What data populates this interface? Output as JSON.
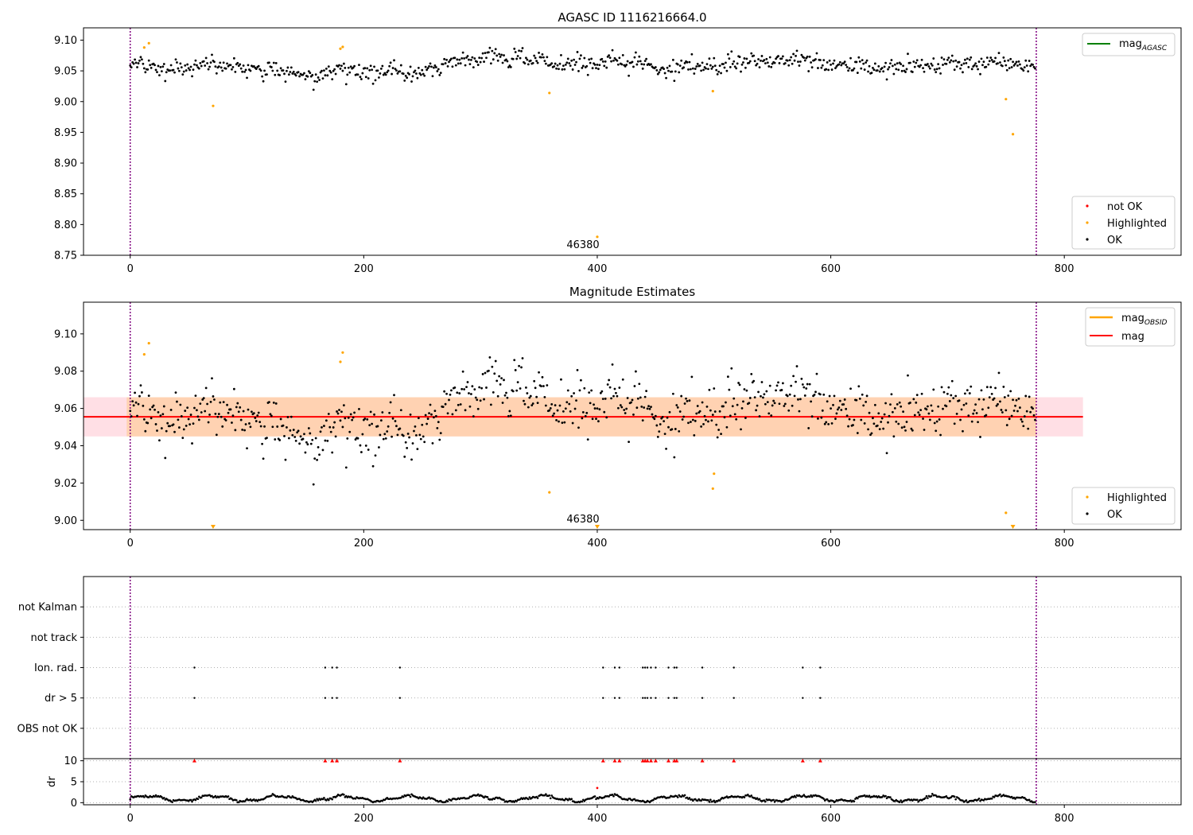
{
  "chart_data": [
    {
      "type": "scatter",
      "title": "AGASC ID 1116216664.0",
      "xlim": [
        -40,
        900
      ],
      "ylim": [
        8.75,
        9.12
      ],
      "xticks": [
        0,
        200,
        400,
        600,
        800
      ],
      "yticks": [
        8.75,
        8.8,
        8.85,
        8.9,
        8.95,
        9.0,
        9.05,
        9.1
      ],
      "ytick_labels": [
        "8.75",
        "8.80",
        "8.85",
        "8.90",
        "8.95",
        "9.00",
        "9.05",
        "9.10"
      ],
      "xtick_labels": [
        "0",
        "200",
        "400",
        "600",
        "800"
      ],
      "vlines": [
        0,
        776
      ],
      "annotation": {
        "text": "46380",
        "x": 389,
        "y": 8.755
      },
      "legend_top": {
        "placement": "top-right",
        "entries": [
          {
            "label": "mag",
            "subscript": "AGASC",
            "color": "#008000"
          }
        ]
      },
      "legend_bottom": {
        "placement": "bottom-right",
        "entries": [
          {
            "label": "not OK",
            "color": "#ff0000"
          },
          {
            "label": "Highlighted",
            "color": "#ffa500"
          },
          {
            "label": "OK",
            "color": "#000000"
          }
        ]
      },
      "series": [
        {
          "name": "OK",
          "color": "#000000",
          "n": 776,
          "base": 9.055,
          "noise": 0.009
        },
        {
          "name": "Highlighted",
          "color": "#ffa500",
          "points": [
            [
              12,
              9.088
            ],
            [
              16,
              9.095
            ],
            [
              71,
              8.993
            ],
            [
              180,
              9.086
            ],
            [
              182,
              9.089
            ],
            [
              359,
              9.014
            ],
            [
              400,
              8.78
            ],
            [
              499,
              9.017
            ],
            [
              750,
              9.004
            ],
            [
              756,
              8.947
            ]
          ]
        },
        {
          "name": "not OK",
          "color": "#ff0000",
          "points": []
        }
      ]
    },
    {
      "type": "scatter",
      "title": "Magnitude Estimates",
      "xlim": [
        -40,
        900
      ],
      "ylim": [
        8.995,
        9.117
      ],
      "xticks": [
        0,
        200,
        400,
        600,
        800
      ],
      "xtick_labels": [
        "0",
        "200",
        "400",
        "600",
        "800"
      ],
      "yticks": [
        9.0,
        9.02,
        9.04,
        9.06,
        9.08,
        9.1
      ],
      "ytick_labels": [
        "9.00",
        "9.02",
        "9.04",
        "9.06",
        "9.08",
        "9.10"
      ],
      "vlines": [
        0,
        776
      ],
      "annotation": {
        "text": "46380",
        "x": 389,
        "y": 9.0
      },
      "mag_line": {
        "label": "mag",
        "value": 9.0555,
        "color": "#ff0000",
        "x_range": [
          -40,
          816
        ]
      },
      "mag_band": {
        "low": 9.045,
        "high": 9.066,
        "color": "#ffc0cb",
        "x_range": [
          -40,
          816
        ]
      },
      "mag_obsid": {
        "label": "mag",
        "subscript": "OBSID",
        "color": "#ffa500",
        "value": 9.0555,
        "low": 9.045,
        "high": 9.066,
        "x_range": [
          -3,
          776
        ]
      },
      "legend_top": {
        "placement": "top-right",
        "entries": [
          {
            "label": "mag",
            "subscript": "OBSID",
            "color": "#ffa500"
          },
          {
            "label": "mag",
            "subscript": "",
            "color": "#ff0000"
          }
        ]
      },
      "legend_bottom": {
        "placement": "bottom-right",
        "entries": [
          {
            "label": "Highlighted",
            "color": "#ffa500"
          },
          {
            "label": "OK",
            "color": "#000000"
          }
        ]
      },
      "series": [
        {
          "name": "OK",
          "color": "#000000",
          "n": 776,
          "base": 9.055,
          "noise": 0.009
        },
        {
          "name": "Highlighted",
          "color": "#ffa500",
          "points": [
            [
              12,
              9.089
            ],
            [
              16,
              9.095
            ],
            [
              180,
              9.085
            ],
            [
              182,
              9.09
            ],
            [
              359,
              9.015
            ],
            [
              499,
              9.017
            ],
            [
              500,
              9.025
            ],
            [
              750,
              9.004
            ]
          ]
        },
        {
          "name": "Highlighted (off-scale)",
          "color": "#ffa500",
          "marker": "triangle-down",
          "points": [
            [
              71,
              8.996
            ],
            [
              400,
              8.996
            ],
            [
              756,
              8.996
            ]
          ]
        }
      ]
    },
    {
      "type": "scatter",
      "title": "",
      "xlim": [
        -40,
        900
      ],
      "categories": [
        "OBS not OK",
        "dr > 5",
        "Ion. rad.",
        "not track",
        "not Kalman"
      ],
      "vlines": [
        0,
        776
      ],
      "flag_x": [
        55,
        167,
        173,
        177,
        231,
        405,
        415,
        419,
        439,
        441,
        443,
        446,
        450,
        461,
        466,
        468,
        490,
        517,
        576,
        591
      ],
      "flags": {
        "OBS not OK": [],
        "dr > 5": "flag_x",
        "Ion. rad.": "flag_x",
        "not track": [],
        "not Kalman": []
      }
    },
    {
      "type": "scatter",
      "title": "",
      "xlim": [
        -40,
        900
      ],
      "ylim": [
        -0.5,
        10.5
      ],
      "ylabel": "dr",
      "yticks": [
        0,
        5,
        10
      ],
      "ytick_labels": [
        "0",
        "5",
        "10"
      ],
      "xticks": [
        0,
        200,
        400,
        600,
        800
      ],
      "xtick_labels": [
        "0",
        "200",
        "400",
        "600",
        "800"
      ],
      "vlines": [
        0,
        776
      ],
      "series": [
        {
          "name": "dr",
          "color": "#000000",
          "n": 776,
          "base": 1.0
        },
        {
          "name": "dr clipped",
          "color": "#ff0000",
          "marker": "triangle-up",
          "value": 10,
          "x": "flag_x"
        },
        {
          "name": "dr outlier",
          "color": "#ff0000",
          "points": [
            [
              400,
              3.5
            ]
          ]
        }
      ]
    }
  ]
}
